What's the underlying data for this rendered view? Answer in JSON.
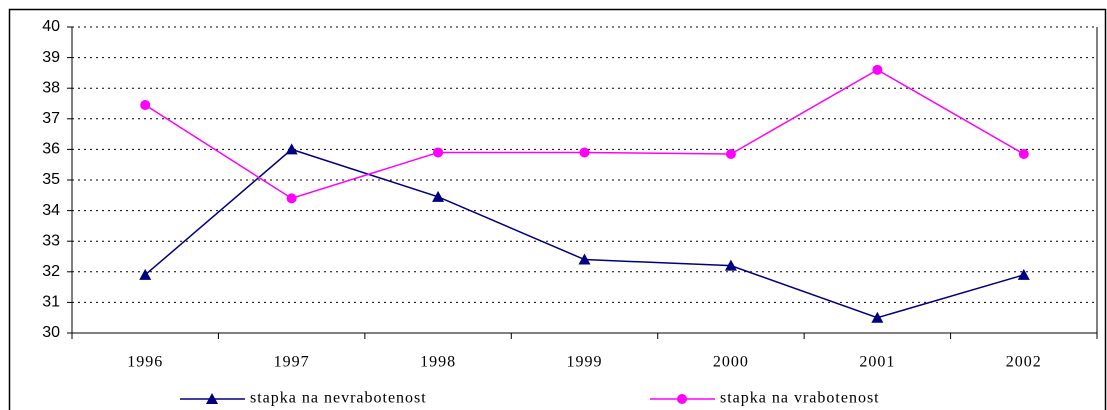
{
  "chart_data": {
    "type": "line",
    "categories": [
      "1996",
      "1997",
      "1998",
      "1999",
      "2000",
      "2001",
      "2002"
    ],
    "series": [
      {
        "name": "stapka na nevrabotenost",
        "color": "#000080",
        "marker": "triangle",
        "values": [
          31.9,
          36.0,
          34.45,
          32.4,
          32.2,
          30.5,
          31.9
        ]
      },
      {
        "name": "stapka na vrabotenost",
        "color": "#ff00ff",
        "marker": "circle",
        "values": [
          37.45,
          34.4,
          35.9,
          35.9,
          35.85,
          38.6,
          35.85
        ]
      }
    ],
    "ylim": [
      30,
      40
    ],
    "yticks": [
      30,
      31,
      32,
      33,
      34,
      35,
      36,
      37,
      38,
      39,
      40
    ],
    "grid": true,
    "legend": "bottom"
  }
}
